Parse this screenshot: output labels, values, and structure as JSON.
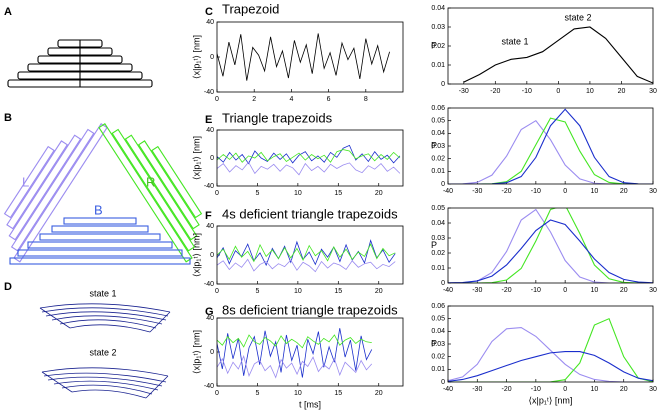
{
  "panel_labels": [
    "A",
    "B",
    "C",
    "D",
    "E",
    "F",
    "G"
  ],
  "diagram_labels": {
    "left": "L",
    "right": "R",
    "bottom": "B",
    "state_1": "state 1",
    "state_2": "state 2"
  },
  "chart_data": [
    {
      "type": "line",
      "title": "Trapezoid",
      "ylabel": "⟨x|p₁ᵗ⟩ [nm]",
      "x": [
        0,
        0.32,
        0.64,
        0.96,
        1.28,
        1.6,
        1.92,
        2.24,
        2.56,
        2.88,
        3.2,
        3.52,
        3.84,
        4.16,
        4.48,
        4.8,
        5.12,
        5.44,
        5.76,
        6.08,
        6.4,
        6.72,
        7.04,
        7.36,
        7.68,
        8,
        8.32,
        8.64,
        8.96,
        9.28
      ],
      "series": [
        {
          "color": "#000000",
          "values": [
            4,
            -22,
            17,
            -9,
            26,
            -27,
            11,
            2,
            -16,
            23,
            -11,
            7,
            -24,
            19,
            -6,
            14,
            -19,
            27,
            -13,
            5,
            -21,
            16,
            -3,
            10,
            -25,
            21,
            -8,
            13,
            -17,
            6
          ]
        }
      ],
      "xlim": [
        0,
        10
      ],
      "xticks": [
        0,
        2,
        4,
        6,
        8
      ],
      "ylim": [
        -40,
        40
      ],
      "yticks": [
        -40,
        0,
        40
      ]
    },
    {
      "type": "line",
      "ylabel": "P",
      "annotations": [
        "state 1",
        "state 2"
      ],
      "x": [
        -30,
        -25,
        -20,
        -15,
        -10,
        -5,
        0,
        5,
        10,
        15,
        20,
        25,
        30
      ],
      "series": [
        {
          "color": "#000000",
          "values": [
            0.001,
            0.005,
            0.01,
            0.013,
            0.014,
            0.017,
            0.023,
            0.029,
            0.03,
            0.024,
            0.014,
            0.004,
            0.0005
          ]
        }
      ],
      "xlim": [
        -35,
        30
      ],
      "xticks": [
        -30,
        -20,
        -10,
        0,
        10,
        20,
        30
      ],
      "ylim": [
        0,
        0.04
      ],
      "yticks": [
        0,
        0.01,
        0.02,
        0.03,
        0.04
      ]
    },
    {
      "type": "line",
      "title": "Triangle trapezoids",
      "ylabel": "⟨x|p₁ᵗ⟩ [nm]",
      "x": [
        0,
        0.78,
        1.56,
        2.34,
        3.12,
        3.9,
        4.68,
        5.46,
        6.24,
        7.02,
        7.8,
        8.58,
        9.36,
        10.14,
        10.92,
        11.7,
        12.48,
        13.26,
        14.04,
        14.82,
        15.6,
        16.38,
        17.16,
        17.94,
        18.72,
        19.5,
        20.28,
        21.06,
        21.84,
        22.62
      ],
      "series": [
        {
          "color": "#1a2ecc",
          "values": [
            2,
            -6,
            8,
            -3,
            5,
            -8,
            10,
            0,
            -5,
            7,
            -2,
            6,
            -7,
            4,
            9,
            -4,
            3,
            -6,
            8,
            1,
            14,
            18,
            -3,
            6,
            -5,
            9,
            -2,
            4,
            -7,
            3
          ]
        },
        {
          "color": "#44e622",
          "values": [
            -3,
            5,
            -2,
            7,
            -6,
            3,
            0,
            8,
            -4,
            2,
            6,
            -5,
            1,
            7,
            -3,
            5,
            -1,
            4,
            -6,
            9,
            12,
            10,
            -1,
            3,
            6,
            -4,
            5,
            -2,
            8,
            0
          ]
        },
        {
          "color": "#9b8cf0",
          "values": [
            -15,
            -8,
            -20,
            -11,
            -17,
            -6,
            -22,
            -12,
            -16,
            -9,
            -19,
            -10,
            -14,
            -24,
            -8,
            -18,
            -12,
            -20,
            -9,
            -15,
            -10,
            -7,
            -17,
            -21,
            -11,
            -16,
            -8,
            -19,
            -13,
            -22
          ]
        }
      ],
      "xlim": [
        0,
        23
      ],
      "xticks": [
        0,
        5,
        10,
        15,
        20
      ],
      "ylim": [
        -40,
        40
      ],
      "yticks": [
        -40,
        0,
        40
      ]
    },
    {
      "type": "line",
      "ylabel": "P",
      "x": [
        -40,
        -35,
        -30,
        -25,
        -20,
        -15,
        -10,
        -5,
        0,
        5,
        10,
        15,
        20,
        25,
        30
      ],
      "series": [
        {
          "color": "#9b8cf0",
          "values": [
            0,
            0.0001,
            0.0013,
            0.007,
            0.022,
            0.043,
            0.05,
            0.035,
            0.015,
            0.004,
            0.0006,
            0,
            0,
            0,
            0
          ]
        },
        {
          "color": "#44e622",
          "values": [
            0,
            0,
            0,
            0.0002,
            0.0018,
            0.01,
            0.031,
            0.052,
            0.049,
            0.026,
            0.0074,
            0.0012,
            0.0001,
            0,
            0
          ]
        },
        {
          "color": "#1a2ecc",
          "values": [
            0,
            0,
            0,
            0.0001,
            0.001,
            0.0059,
            0.021,
            0.046,
            0.059,
            0.046,
            0.021,
            0.0059,
            0.001,
            0.0001,
            0
          ]
        }
      ],
      "xlim": [
        -40,
        30
      ],
      "xticks": [
        -40,
        -30,
        -20,
        -10,
        0,
        10,
        20,
        30
      ],
      "ylim": [
        0,
        0.06
      ],
      "yticks": [
        0,
        0.01,
        0.02,
        0.03,
        0.04,
        0.05,
        0.06
      ]
    },
    {
      "type": "line",
      "title": "4s deficient triangle trapezoids",
      "ylabel": "⟨x|p₁ᵗ⟩ [nm]",
      "x": [
        0,
        0.76,
        1.52,
        2.28,
        3.04,
        3.8,
        4.56,
        5.32,
        6.08,
        6.84,
        7.6,
        8.36,
        9.12,
        9.88,
        10.64,
        11.4,
        12.16,
        12.92,
        13.68,
        14.44,
        15.2,
        15.96,
        16.72,
        17.48,
        18.24,
        19,
        19.76,
        20.52,
        21.28,
        22.04
      ],
      "series": [
        {
          "color": "#1a2ecc",
          "values": [
            -4,
            10,
            -12,
            6,
            -2,
            15,
            -8,
            3,
            -14,
            9,
            -5,
            12,
            -10,
            18,
            -6,
            4,
            -13,
            8,
            -3,
            11,
            -9,
            14,
            -7,
            5,
            -11,
            20,
            -4,
            7,
            -10,
            2
          ]
        },
        {
          "color": "#44e622",
          "values": [
            0,
            8,
            -6,
            12,
            -3,
            5,
            -9,
            14,
            -2,
            7,
            -5,
            10,
            -4,
            9,
            -7,
            13,
            -1,
            6,
            -8,
            11,
            -3,
            8,
            -6,
            4,
            -2,
            15,
            -5,
            9,
            -1,
            3
          ]
        },
        {
          "color": "#9b8cf0",
          "values": [
            -14,
            -8,
            -20,
            -11,
            -17,
            -6,
            -22,
            -13,
            -9,
            -19,
            -12,
            -16,
            -7,
            -21,
            -10,
            -15,
            -23,
            -9,
            -18,
            -11,
            -14,
            -20,
            -8,
            -17,
            -12,
            -10,
            -19,
            -13,
            -16,
            -9
          ]
        }
      ],
      "xlim": [
        0,
        23
      ],
      "xticks": [
        0,
        5,
        10,
        15,
        20
      ],
      "ylim": [
        -40,
        40
      ],
      "yticks": [
        -40,
        0,
        40
      ]
    },
    {
      "type": "line",
      "ylabel": "P",
      "x": [
        -40,
        -35,
        -30,
        -25,
        -20,
        -15,
        -10,
        -5,
        0,
        5,
        10,
        15,
        20,
        25,
        30
      ],
      "series": [
        {
          "color": "#9b8cf0",
          "values": [
            0,
            0.0001,
            0.0013,
            0.007,
            0.021,
            0.042,
            0.049,
            0.034,
            0.015,
            0.004,
            0.0006,
            0,
            0,
            0,
            0
          ]
        },
        {
          "color": "#44e622",
          "values": [
            0,
            0,
            0,
            0.0002,
            0.002,
            0.0097,
            0.028,
            0.049,
            0.052,
            0.033,
            0.012,
            0.0028,
            0.0004,
            0,
            0
          ]
        },
        {
          "color": "#1a2ecc",
          "values": [
            0.0001,
            0.0003,
            0.0014,
            0.0046,
            0.012,
            0.023,
            0.035,
            0.042,
            0.039,
            0.028,
            0.016,
            0.007,
            0.0024,
            0.0006,
            0.0001
          ]
        }
      ],
      "xlim": [
        -40,
        30
      ],
      "xticks": [
        -40,
        -30,
        -20,
        -10,
        0,
        10,
        20,
        30
      ],
      "ylim": [
        0,
        0.05
      ],
      "yticks": [
        0,
        0.01,
        0.02,
        0.03,
        0.04,
        0.05
      ]
    },
    {
      "type": "line",
      "title": "8s deficient triangle trapezoids",
      "ylabel": "⟨x|p₁ᵗ⟩ [nm]",
      "xlabel": "t [ms]",
      "x": [
        0,
        0.66,
        1.32,
        1.98,
        2.64,
        3.3,
        3.96,
        4.62,
        5.28,
        5.94,
        6.6,
        7.26,
        7.92,
        8.58,
        9.24,
        9.9,
        10.56,
        11.22,
        11.88,
        12.54,
        13.2,
        13.86,
        14.52,
        15.18,
        15.84,
        16.5,
        17.16,
        17.82,
        18.48,
        19.14
      ],
      "series": [
        {
          "color": "#1a2ecc",
          "values": [
            10,
            -20,
            22,
            -8,
            16,
            -28,
            5,
            18,
            -15,
            25,
            -5,
            12,
            -24,
            20,
            -10,
            8,
            -30,
            15,
            -2,
            24,
            -18,
            6,
            -12,
            28,
            -6,
            14,
            -22,
            19,
            -9,
            3
          ]
        },
        {
          "color": "#44e622",
          "values": [
            14,
            8,
            18,
            11,
            16,
            6,
            20,
            12,
            9,
            17,
            13,
            7,
            19,
            10,
            15,
            11,
            5,
            18,
            13,
            9,
            16,
            12,
            20,
            8,
            14,
            17,
            10,
            15,
            12,
            11
          ]
        },
        {
          "color": "#9b8cf0",
          "values": [
            -18,
            -8,
            -25,
            -12,
            -20,
            -5,
            -28,
            -14,
            -10,
            -22,
            -16,
            -30,
            -9,
            -19,
            -13,
            -26,
            -11,
            -17,
            -6,
            -23,
            -15,
            -20,
            -8,
            -27,
            -12,
            -18,
            -24,
            -10,
            -21,
            -14
          ]
        }
      ],
      "xlim": [
        0,
        23
      ],
      "xticks": [
        0,
        5,
        10,
        15,
        20
      ],
      "ylim": [
        -40,
        40
      ],
      "yticks": [
        -40,
        0,
        40
      ]
    },
    {
      "type": "line",
      "ylabel": "P",
      "xlabel": "⟨x|p₁ᵗ⟩ [nm]",
      "x": [
        -40,
        -35,
        -30,
        -25,
        -20,
        -15,
        -10,
        -5,
        0,
        5,
        10,
        15,
        20,
        25,
        30
      ],
      "series": [
        {
          "color": "#9b8cf0",
          "values": [
            0.001,
            0.004,
            0.014,
            0.032,
            0.042,
            0.043,
            0.036,
            0.025,
            0.014,
            0.006,
            0.002,
            0.0005,
            0,
            0,
            0
          ]
        },
        {
          "color": "#44e622",
          "values": [
            0,
            0,
            0,
            0,
            0,
            0,
            0,
            0.0001,
            0.0018,
            0.015,
            0.045,
            0.05,
            0.02,
            0.003,
            0.0002
          ]
        },
        {
          "color": "#1a2ecc",
          "values": [
            0.0005,
            0.002,
            0.005,
            0.009,
            0.013,
            0.017,
            0.02,
            0.023,
            0.024,
            0.024,
            0.021,
            0.015,
            0.008,
            0.003,
            0.001
          ]
        }
      ],
      "xlim": [
        -40,
        30
      ],
      "xticks": [
        -40,
        -30,
        -20,
        -10,
        0,
        10,
        20,
        30
      ],
      "ylim": [
        0,
        0.06
      ],
      "yticks": [
        0,
        0.01,
        0.02,
        0.03,
        0.04,
        0.05,
        0.06
      ]
    }
  ]
}
